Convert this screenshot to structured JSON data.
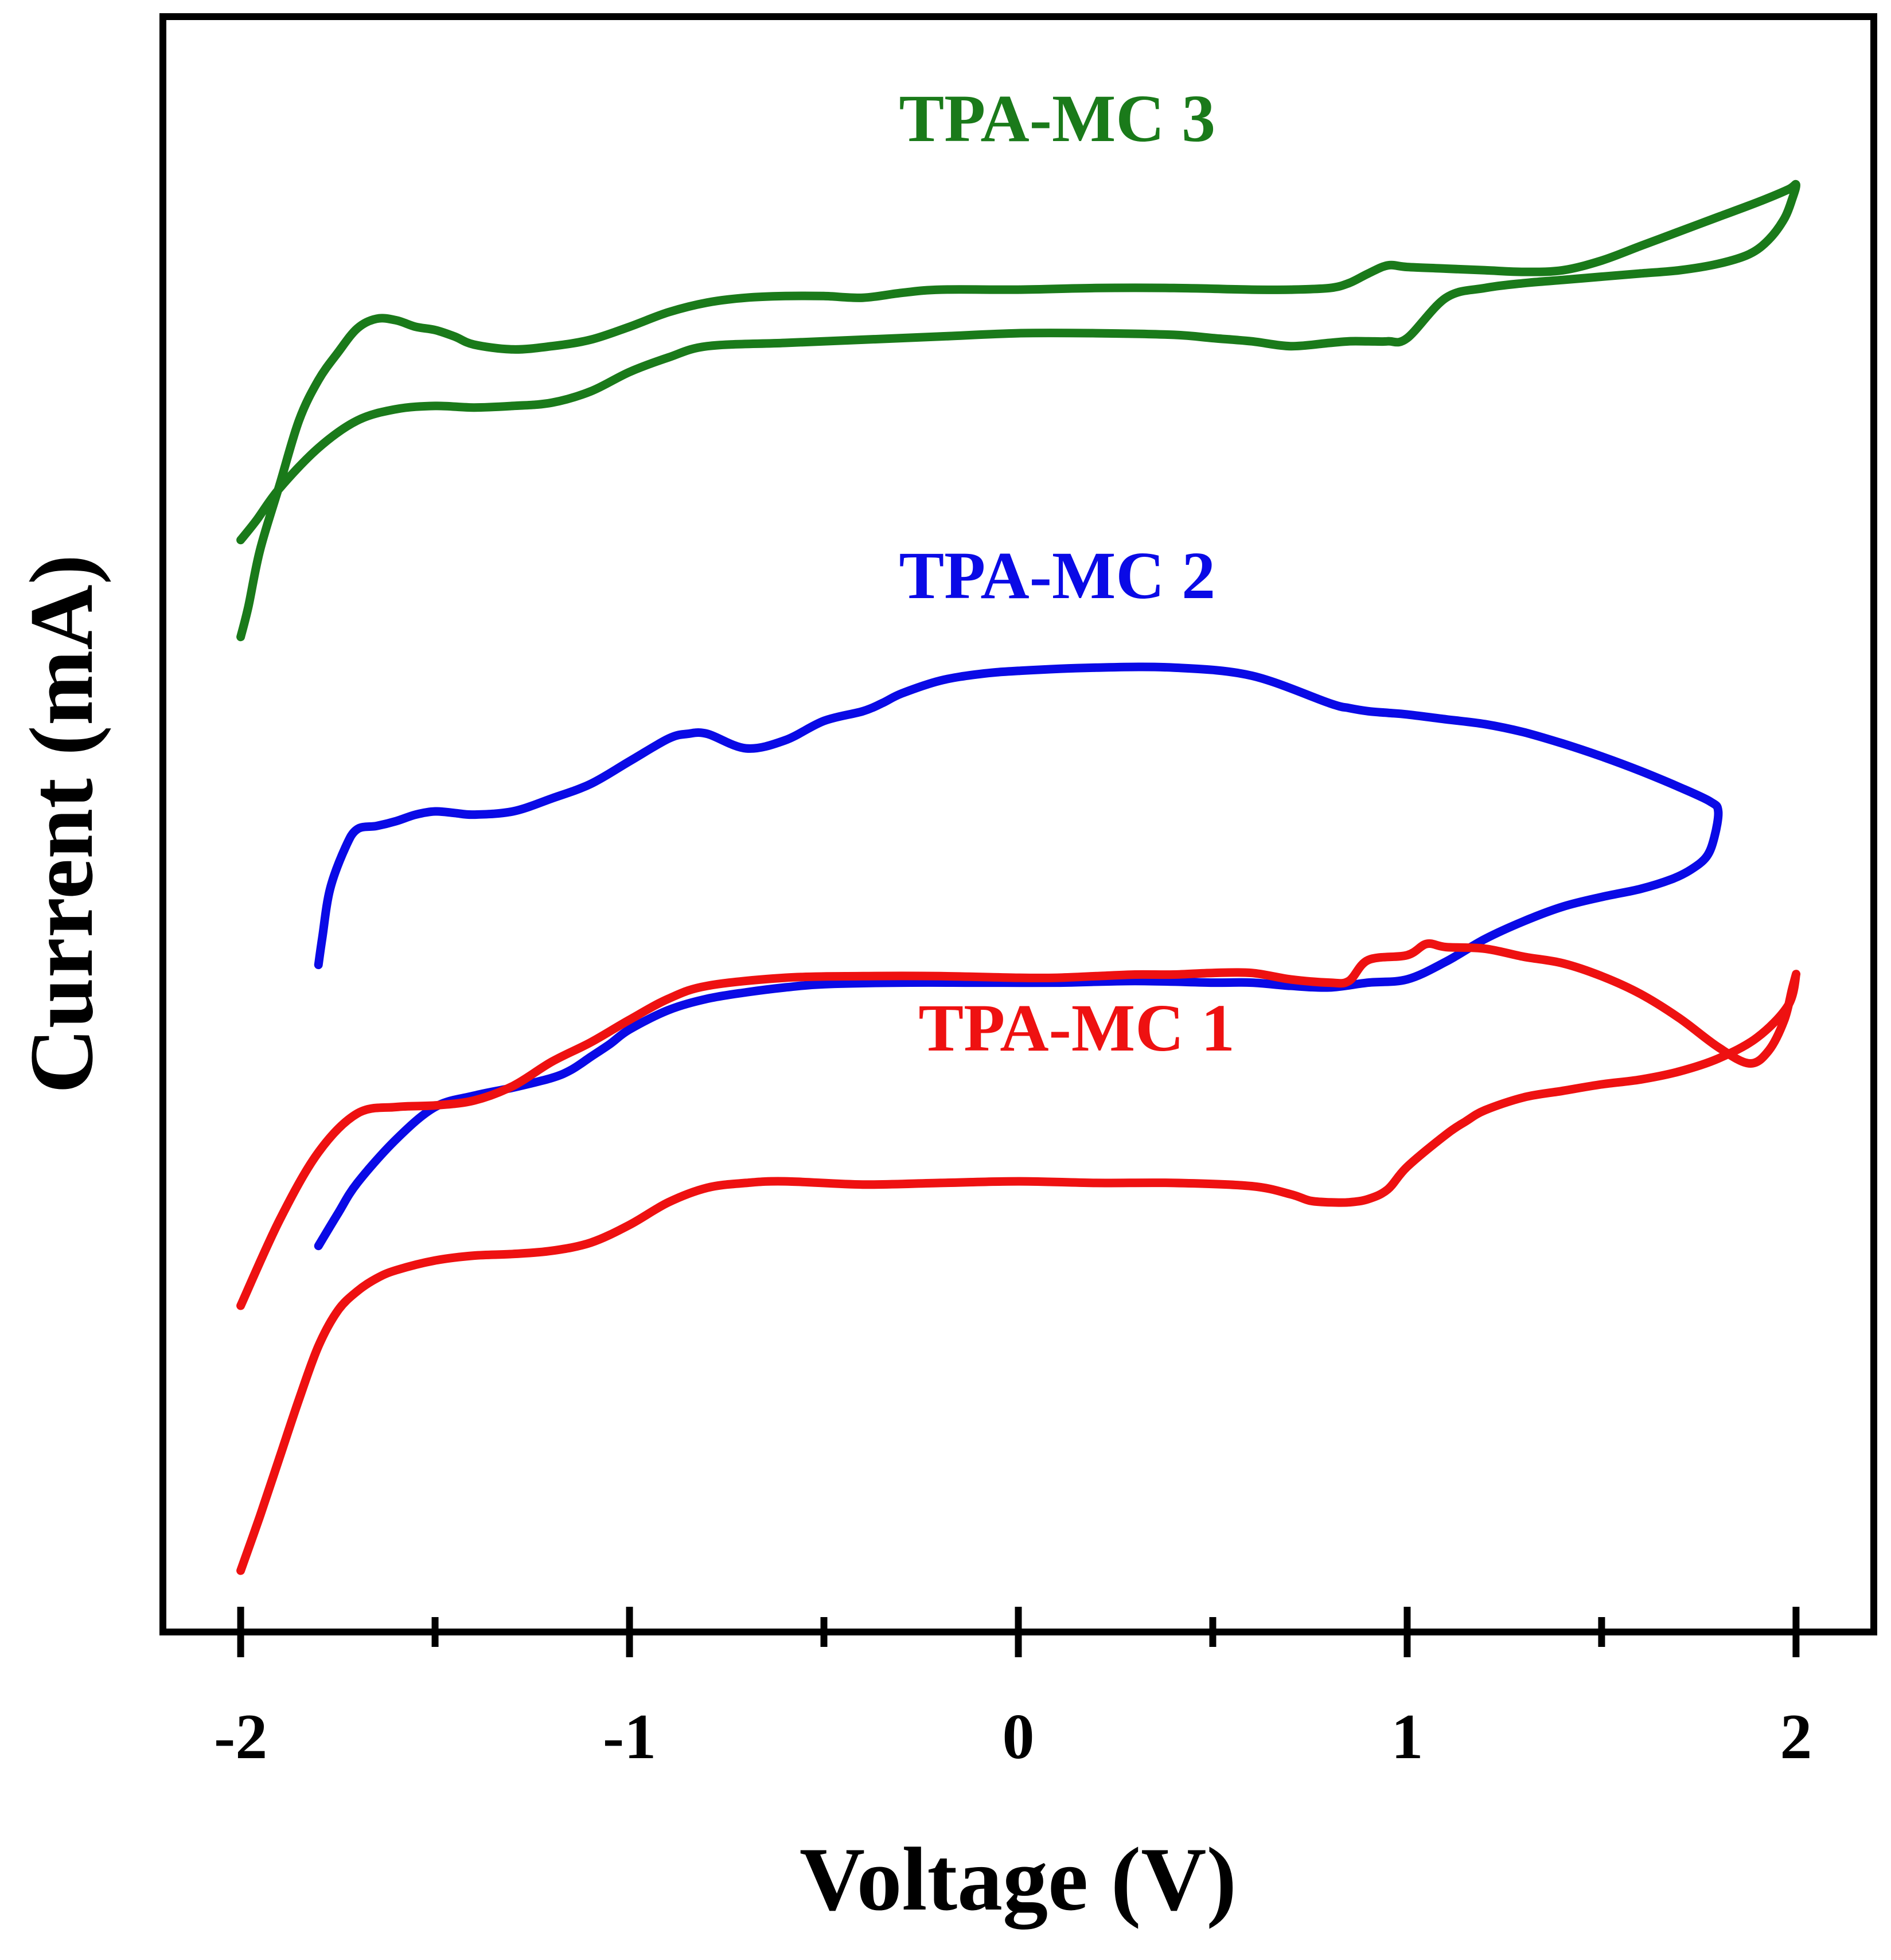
{
  "chart_data": {
    "type": "line",
    "xlabel": "Voltage (V)",
    "ylabel": "Current (mA)",
    "xlim": [
      -2.2,
      2.2
    ],
    "ylim": [
      0,
      100
    ],
    "x_ticks": [
      -2,
      -1,
      0,
      1,
      2
    ],
    "x_minor_ticks": [
      -1.5,
      -0.5,
      0.5,
      1.5
    ],
    "x_tick_labels": [
      "-2",
      "-1",
      "0",
      "1",
      "2"
    ],
    "y_ticks_visible": false,
    "grid": false,
    "legend": "none",
    "series": [
      {
        "name": "TPA-MC 3",
        "color": "#1a7a1a",
        "label_at": [
          0.1,
          92.3
        ],
        "x": [
          -2.0,
          -1.98,
          -1.95,
          -1.9,
          -1.85,
          -1.8,
          -1.75,
          -1.7,
          -1.65,
          -1.6,
          -1.55,
          -1.5,
          -1.45,
          -1.4,
          -1.3,
          -1.2,
          -1.1,
          -1.0,
          -0.9,
          -0.8,
          -0.7,
          -0.6,
          -0.5,
          -0.4,
          -0.3,
          -0.2,
          0.0,
          0.2,
          0.4,
          0.6,
          0.7,
          0.8,
          0.85,
          0.9,
          0.95,
          1.0,
          1.1,
          1.2,
          1.3,
          1.4,
          1.5,
          1.6,
          1.7,
          1.8,
          1.9,
          1.98,
          2.0,
          1.99,
          1.97,
          1.93,
          1.88,
          1.8,
          1.7,
          1.6,
          1.5,
          1.4,
          1.3,
          1.2,
          1.1,
          1.0,
          0.95,
          0.9,
          0.85,
          0.8,
          0.7,
          0.6,
          0.5,
          0.4,
          0.2,
          0.0,
          -0.2,
          -0.4,
          -0.6,
          -0.8,
          -0.9,
          -1.0,
          -1.1,
          -1.2,
          -1.3,
          -1.4,
          -1.5,
          -1.6,
          -1.7,
          -1.8,
          -1.9,
          -1.96,
          -2.0
        ],
        "y": [
          61.6,
          63.5,
          67.0,
          71.0,
          75.0,
          77.5,
          79.2,
          80.7,
          81.3,
          81.2,
          80.8,
          80.6,
          80.2,
          79.7,
          79.4,
          79.6,
          80.0,
          80.8,
          81.7,
          82.3,
          82.6,
          82.7,
          82.7,
          82.6,
          82.9,
          83.1,
          83.1,
          83.2,
          83.2,
          83.1,
          83.1,
          83.2,
          83.5,
          84.1,
          84.6,
          84.5,
          84.4,
          84.3,
          84.2,
          84.3,
          84.9,
          85.8,
          86.7,
          87.6,
          88.5,
          89.3,
          89.6,
          88.7,
          87.5,
          86.2,
          85.3,
          84.7,
          84.3,
          84.1,
          83.9,
          83.7,
          83.5,
          83.2,
          82.6,
          80.1,
          79.9,
          79.9,
          79.9,
          79.8,
          79.6,
          79.9,
          80.1,
          80.3,
          80.4,
          80.4,
          80.2,
          80.0,
          79.8,
          79.6,
          78.9,
          78.0,
          76.8,
          76.1,
          75.9,
          75.8,
          75.9,
          75.7,
          75.0,
          73.3,
          70.8,
          68.8,
          67.6
        ]
      },
      {
        "name": "TPA-MC 2",
        "color": "#0a0ae6",
        "label_at": [
          0.1,
          64.0
        ],
        "x": [
          -1.8,
          -1.79,
          -1.77,
          -1.73,
          -1.7,
          -1.65,
          -1.6,
          -1.55,
          -1.5,
          -1.45,
          -1.4,
          -1.3,
          -1.2,
          -1.1,
          -1.0,
          -0.9,
          -0.85,
          -0.8,
          -0.7,
          -0.6,
          -0.5,
          -0.4,
          -0.35,
          -0.3,
          -0.2,
          -0.1,
          0.0,
          0.2,
          0.4,
          0.6,
          0.8,
          0.85,
          0.9,
          0.95,
          1.0,
          1.1,
          1.2,
          1.3,
          1.4,
          1.5,
          1.6,
          1.7,
          1.78,
          1.8,
          1.79,
          1.77,
          1.73,
          1.68,
          1.6,
          1.5,
          1.4,
          1.3,
          1.2,
          1.1,
          1.0,
          0.9,
          0.8,
          0.7,
          0.6,
          0.5,
          0.3,
          0.1,
          -0.1,
          -0.3,
          -0.5,
          -0.6,
          -0.7,
          -0.8,
          -0.9,
          -1.0,
          -1.05,
          -1.1,
          -1.15,
          -1.2,
          -1.3,
          -1.4,
          -1.5,
          -1.6,
          -1.7,
          -1.75,
          -1.8
        ],
        "y": [
          41.3,
          43.0,
          46.0,
          48.6,
          49.7,
          49.9,
          50.2,
          50.6,
          50.8,
          50.7,
          50.6,
          50.8,
          51.6,
          52.5,
          53.9,
          55.3,
          55.6,
          55.6,
          54.7,
          55.2,
          56.4,
          57.0,
          57.5,
          58.1,
          58.9,
          59.3,
          59.5,
          59.7,
          59.7,
          59.2,
          57.5,
          57.2,
          57.0,
          56.9,
          56.8,
          56.5,
          56.2,
          55.7,
          55.0,
          54.2,
          53.3,
          52.3,
          51.4,
          50.8,
          49.2,
          48.0,
          47.2,
          46.6,
          46.0,
          45.5,
          44.9,
          44.0,
          42.9,
          41.5,
          40.4,
          40.2,
          39.9,
          40.0,
          40.2,
          40.2,
          40.3,
          40.2,
          40.2,
          40.2,
          40.1,
          39.9,
          39.6,
          39.2,
          38.5,
          37.3,
          36.4,
          35.6,
          34.8,
          34.3,
          33.7,
          33.2,
          32.5,
          30.5,
          27.8,
          25.9,
          23.9
        ]
      },
      {
        "name": "TPA-MC 1",
        "color": "#ee1111",
        "label_at": [
          0.15,
          36.0
        ],
        "x": [
          -2.0,
          -1.95,
          -1.9,
          -1.85,
          -1.8,
          -1.75,
          -1.7,
          -1.65,
          -1.6,
          -1.5,
          -1.4,
          -1.3,
          -1.2,
          -1.1,
          -1.0,
          -0.9,
          -0.8,
          -0.7,
          -0.6,
          -0.4,
          -0.2,
          0.0,
          0.2,
          0.4,
          0.6,
          0.7,
          0.75,
          0.8,
          0.85,
          0.9,
          0.95,
          1.0,
          1.1,
          1.15,
          1.2,
          1.3,
          1.4,
          1.5,
          1.6,
          1.7,
          1.8,
          1.9,
          1.98,
          2.0,
          1.99,
          1.97,
          1.93,
          1.88,
          1.8,
          1.7,
          1.6,
          1.5,
          1.4,
          1.3,
          1.2,
          1.1,
          1.05,
          1.0,
          0.9,
          0.85,
          0.8,
          0.7,
          0.6,
          0.5,
          0.4,
          0.3,
          0.2,
          0.1,
          0.0,
          -0.2,
          -0.4,
          -0.6,
          -0.8,
          -0.9,
          -1.0,
          -1.1,
          -1.2,
          -1.3,
          -1.4,
          -1.5,
          -1.6,
          -1.7,
          -1.8,
          -1.9,
          -2.0
        ],
        "y": [
          3.8,
          7.2,
          10.8,
          14.4,
          17.7,
          19.9,
          21.1,
          21.9,
          22.4,
          23.0,
          23.3,
          23.4,
          23.6,
          24.1,
          25.2,
          26.6,
          27.5,
          27.8,
          27.9,
          27.7,
          27.8,
          27.9,
          27.8,
          27.8,
          27.6,
          27.1,
          26.7,
          26.6,
          26.6,
          26.8,
          27.4,
          28.8,
          30.8,
          31.6,
          32.3,
          33.1,
          33.5,
          33.9,
          34.2,
          34.7,
          35.5,
          36.8,
          38.8,
          40.7,
          39.8,
          37.9,
          36.0,
          35.2,
          36.2,
          38.0,
          39.5,
          40.6,
          41.4,
          41.8,
          42.3,
          42.4,
          42.6,
          41.9,
          41.6,
          40.3,
          40.2,
          40.4,
          40.8,
          40.8,
          40.7,
          40.7,
          40.6,
          40.5,
          40.5,
          40.6,
          40.6,
          40.5,
          40.0,
          39.2,
          37.9,
          36.5,
          35.3,
          33.8,
          32.9,
          32.6,
          32.5,
          32.1,
          29.7,
          25.5,
          20.2
        ]
      }
    ]
  }
}
